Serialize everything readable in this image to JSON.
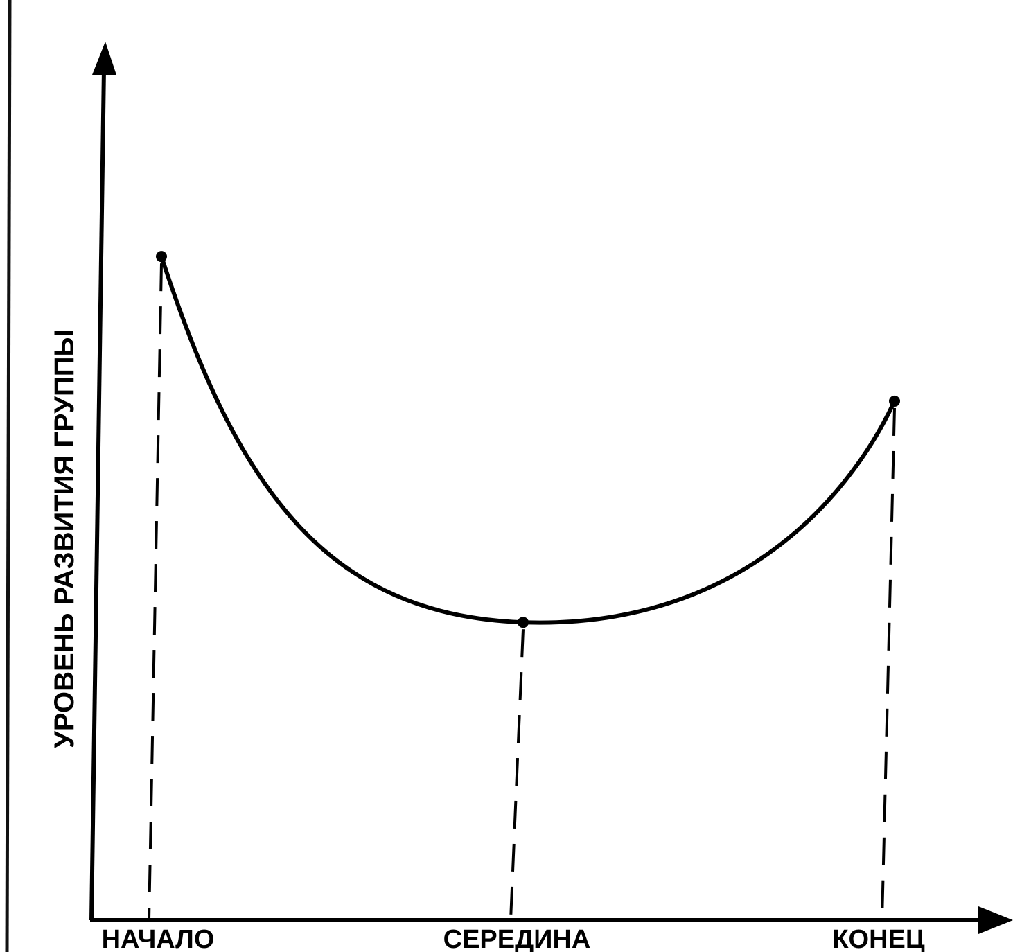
{
  "chart_data": {
    "type": "line",
    "title": "",
    "xlabel": "",
    "ylabel": "УРОВЕНЬ РАЗВИТИЯ ГРУППЫ",
    "categories": [
      "НАЧАЛО",
      "СЕРЕДИНА",
      "КОНЕЦ"
    ],
    "series": [
      {
        "values": [
          0.78,
          0.35,
          0.61
        ]
      }
    ],
    "ylim": [
      0,
      1
    ],
    "curve": "smooth",
    "markers": true,
    "guide_lines": "dashed",
    "grid": false,
    "legend": "none",
    "colors": {
      "line": "#000000",
      "background": "#ffffff"
    }
  }
}
